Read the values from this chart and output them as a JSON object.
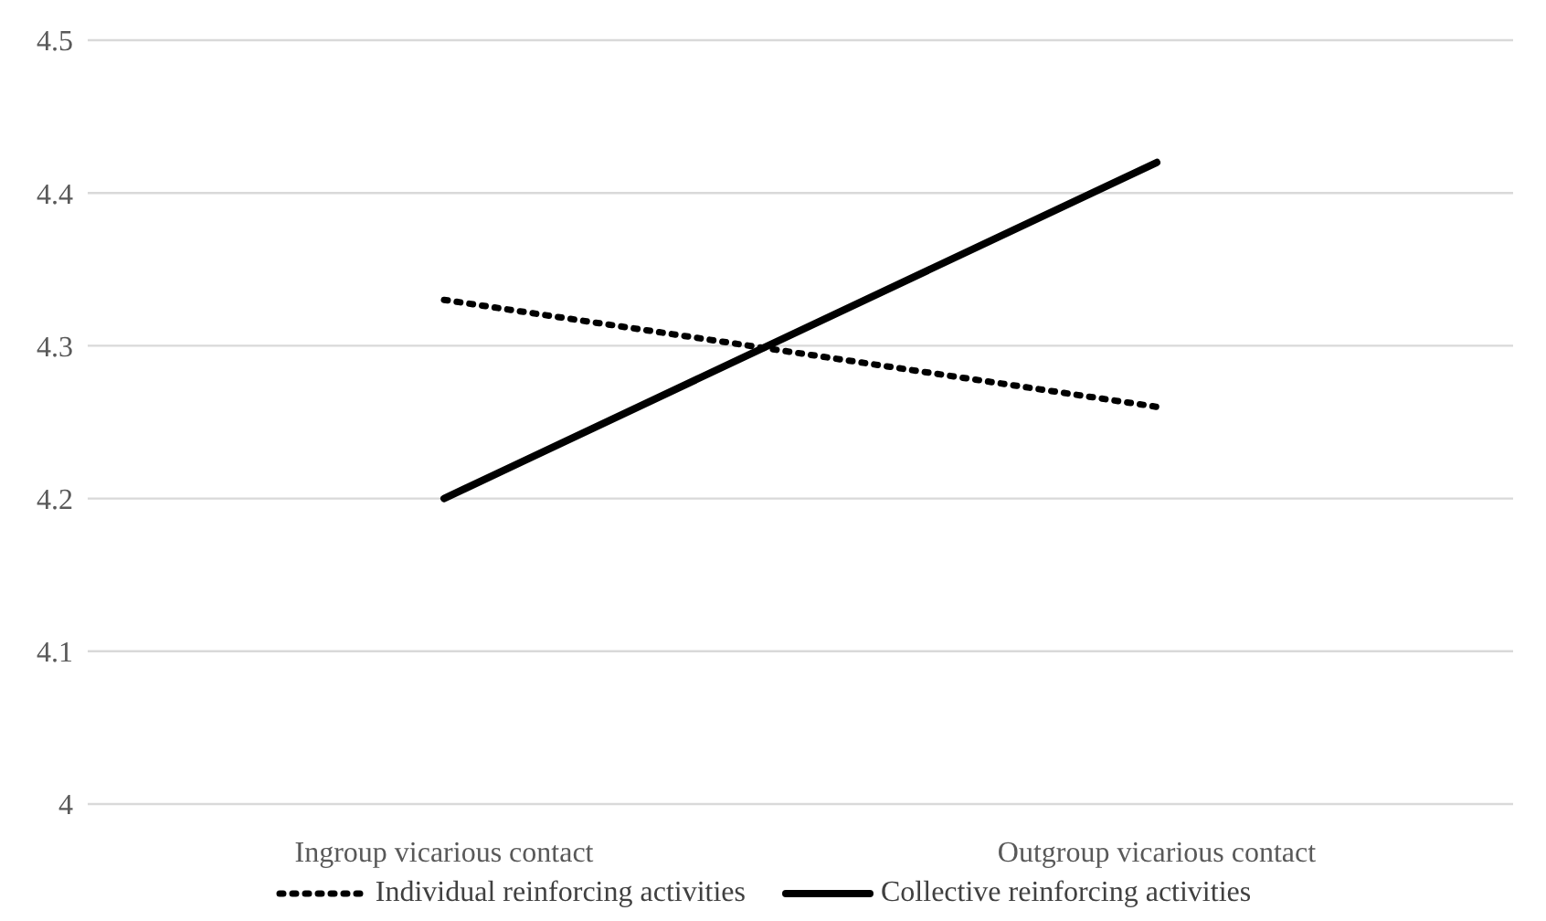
{
  "chart_data": {
    "type": "line",
    "categories": [
      "Ingroup vicarious contact",
      "Outgroup vicarious contact"
    ],
    "series": [
      {
        "name": "Individual reinforcing activities",
        "color": "#000000",
        "line_style": "dotted",
        "values": [
          4.33,
          4.26
        ]
      },
      {
        "name": "Collective reinforcing activities",
        "color": "#000000",
        "line_style": "solid",
        "values": [
          4.2,
          4.42
        ]
      }
    ],
    "ylim": [
      4,
      4.5
    ],
    "yticks": [
      4,
      4.1,
      4.2,
      4.3,
      4.4,
      4.5
    ],
    "grid": "y",
    "legend": "bottom",
    "marker": "none"
  }
}
